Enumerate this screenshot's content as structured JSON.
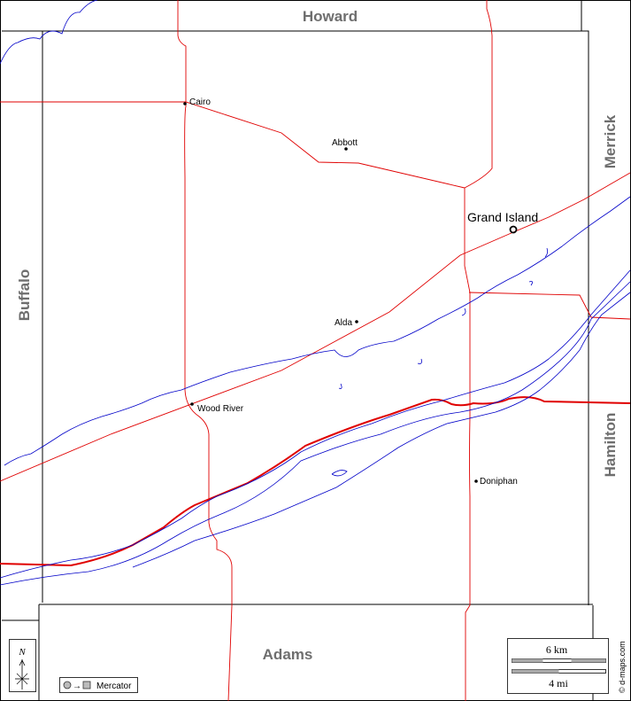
{
  "neighbors": {
    "north": "Howard",
    "south": "Adams",
    "west": "Buffalo",
    "east_upper": "Merrick",
    "east_lower": "Hamilton"
  },
  "places": {
    "cairo": "Cairo",
    "abbott": "Abbott",
    "grand_island": "Grand Island",
    "alda": "Alda",
    "wood_river": "Wood River",
    "doniphan": "Doniphan"
  },
  "scale": {
    "km": "6 km",
    "mi": "4 mi"
  },
  "projection": {
    "label": "Mercator",
    "icon": "projection-icon"
  },
  "north_arrow": {
    "label": "N",
    "icon": "north-arrow-icon"
  },
  "credit": "© d-maps.com",
  "colors": {
    "road": "#e00000",
    "river": "#0000c8",
    "county_label": "#6e6e6e"
  }
}
